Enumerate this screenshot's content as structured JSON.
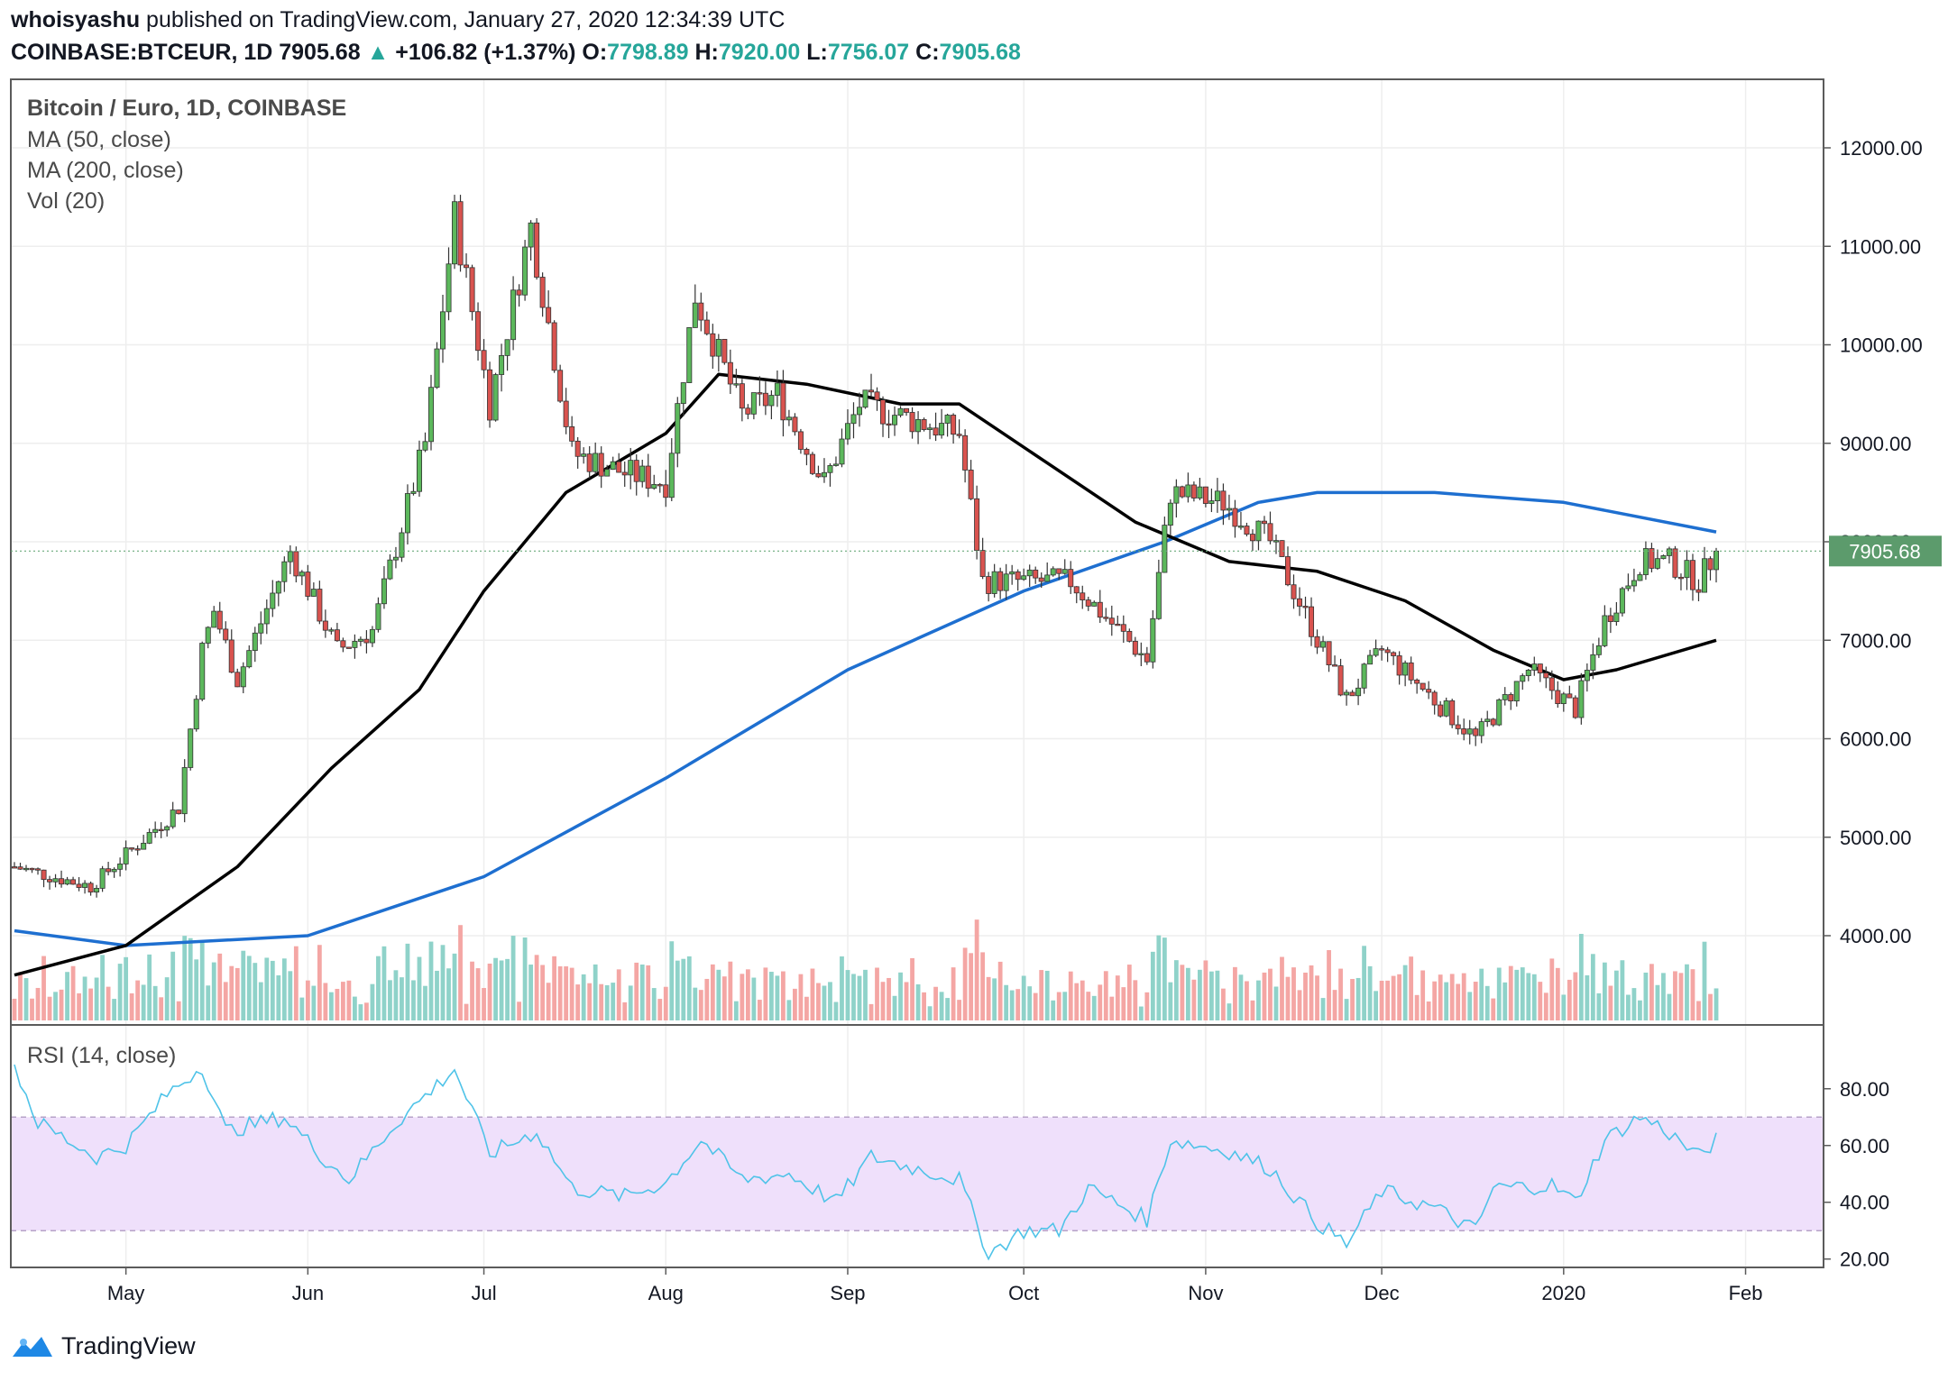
{
  "header": {
    "author": "whoisyashu",
    "published_text": "published on TradingView.com, January 27, 2020 12:34:39 UTC",
    "symbol": "COINBASE:BTCEUR, 1D",
    "last": "7905.68",
    "change": "+106.82 (+1.37%)",
    "o_label": "O:",
    "o": "7798.89",
    "h_label": "H:",
    "h": "7920.00",
    "l_label": "L:",
    "l": "7756.07",
    "c_label": "C:",
    "c": "7905.68"
  },
  "legend": {
    "title": "Bitcoin / Euro, 1D, COINBASE",
    "ma50": "MA (50, close)",
    "ma200": "MA (200, close)",
    "vol": "Vol (20)",
    "rsi": "RSI (14, close)"
  },
  "colors": {
    "up": "#26a69a",
    "down": "#ef5350",
    "candle_up_fill": "#5cb85c",
    "candle_down_fill": "#d9534f",
    "ma50": "#000000",
    "ma200": "#1e6fd0",
    "rsi_line": "#4fc3e8",
    "rsi_band": "#efe0fb",
    "price_tag": "#5c9b6c"
  },
  "footer": {
    "brand": "TradingView"
  },
  "chart_data": [
    {
      "type": "candlestick",
      "title": "Bitcoin / Euro, 1D, COINBASE",
      "y_ticks": [
        "12000.00",
        "11000.00",
        "10000.00",
        "9000.00",
        "8000.00",
        "7000.00",
        "6000.00",
        "5000.00",
        "4000.00"
      ],
      "ylim": [
        3250,
        12900
      ],
      "x_ticks": [
        "May",
        "Jun",
        "Jul",
        "Aug",
        "Sep",
        "Oct",
        "Nov",
        "Dec",
        "2020",
        "Feb"
      ],
      "current_price_label": "7905.68",
      "current_price": 7905.68,
      "ohlc_keypoints": [
        {
          "date": "2019-04-12",
          "close": 4700
        },
        {
          "date": "2019-04-25",
          "close": 4500
        },
        {
          "date": "2019-05-10",
          "close": 5300
        },
        {
          "date": "2019-05-14",
          "close": 6900
        },
        {
          "date": "2019-05-16",
          "close": 7300
        },
        {
          "date": "2019-05-20",
          "close": 6600
        },
        {
          "date": "2019-05-29",
          "close": 7900
        },
        {
          "date": "2019-06-06",
          "close": 6900
        },
        {
          "date": "2019-06-12",
          "close": 7100
        },
        {
          "date": "2019-06-21",
          "close": 9000
        },
        {
          "date": "2019-06-26",
          "close": 11300
        },
        {
          "date": "2019-07-02",
          "close": 9400
        },
        {
          "date": "2019-07-09",
          "close": 11200
        },
        {
          "date": "2019-07-16",
          "close": 8900
        },
        {
          "date": "2019-07-25",
          "close": 8700
        },
        {
          "date": "2019-08-01",
          "close": 8600
        },
        {
          "date": "2019-08-06",
          "close": 10500
        },
        {
          "date": "2019-08-14",
          "close": 9300
        },
        {
          "date": "2019-08-20",
          "close": 9500
        },
        {
          "date": "2019-08-28",
          "close": 8600
        },
        {
          "date": "2019-09-03",
          "close": 9400
        },
        {
          "date": "2019-09-20",
          "close": 9100
        },
        {
          "date": "2019-09-24",
          "close": 7600
        },
        {
          "date": "2019-10-09",
          "close": 7600
        },
        {
          "date": "2019-10-22",
          "close": 6800
        },
        {
          "date": "2019-10-26",
          "close": 8500
        },
        {
          "date": "2019-11-04",
          "close": 8400
        },
        {
          "date": "2019-11-12",
          "close": 8000
        },
        {
          "date": "2019-11-25",
          "close": 6400
        },
        {
          "date": "2019-12-01",
          "close": 6900
        },
        {
          "date": "2019-12-17",
          "close": 6000
        },
        {
          "date": "2019-12-26",
          "close": 6700
        },
        {
          "date": "2020-01-03",
          "close": 6300
        },
        {
          "date": "2020-01-08",
          "close": 7200
        },
        {
          "date": "2020-01-14",
          "close": 7800
        },
        {
          "date": "2020-01-19",
          "close": 7800
        },
        {
          "date": "2020-01-24",
          "close": 7600
        },
        {
          "date": "2020-01-27",
          "close": 7905.68
        }
      ],
      "series": [
        {
          "name": "MA (50, close)",
          "points": [
            {
              "date": "2019-04-12",
              "value": 3600
            },
            {
              "date": "2019-05-01",
              "value": 3900
            },
            {
              "date": "2019-05-20",
              "value": 4700
            },
            {
              "date": "2019-06-05",
              "value": 5700
            },
            {
              "date": "2019-06-20",
              "value": 6500
            },
            {
              "date": "2019-07-01",
              "value": 7500
            },
            {
              "date": "2019-07-15",
              "value": 8500
            },
            {
              "date": "2019-08-01",
              "value": 9100
            },
            {
              "date": "2019-08-10",
              "value": 9700
            },
            {
              "date": "2019-08-25",
              "value": 9600
            },
            {
              "date": "2019-09-10",
              "value": 9400
            },
            {
              "date": "2019-09-20",
              "value": 9400
            },
            {
              "date": "2019-10-05",
              "value": 8800
            },
            {
              "date": "2019-10-20",
              "value": 8200
            },
            {
              "date": "2019-11-05",
              "value": 7800
            },
            {
              "date": "2019-11-20",
              "value": 7700
            },
            {
              "date": "2019-12-05",
              "value": 7400
            },
            {
              "date": "2019-12-20",
              "value": 6900
            },
            {
              "date": "2020-01-01",
              "value": 6600
            },
            {
              "date": "2020-01-10",
              "value": 6700
            },
            {
              "date": "2020-01-27",
              "value": 7000
            }
          ]
        },
        {
          "name": "MA (200, close)",
          "points": [
            {
              "date": "2019-04-12",
              "value": 4050
            },
            {
              "date": "2019-05-01",
              "value": 3900
            },
            {
              "date": "2019-06-01",
              "value": 4000
            },
            {
              "date": "2019-07-01",
              "value": 4600
            },
            {
              "date": "2019-08-01",
              "value": 5600
            },
            {
              "date": "2019-09-01",
              "value": 6700
            },
            {
              "date": "2019-10-01",
              "value": 7500
            },
            {
              "date": "2019-10-25",
              "value": 8000
            },
            {
              "date": "2019-11-10",
              "value": 8400
            },
            {
              "date": "2019-11-20",
              "value": 8500
            },
            {
              "date": "2019-12-10",
              "value": 8500
            },
            {
              "date": "2020-01-01",
              "value": 8400
            },
            {
              "date": "2020-01-27",
              "value": 8100
            }
          ]
        }
      ]
    },
    {
      "type": "line",
      "title": "RSI (14, close)",
      "y_ticks": [
        "80.00",
        "60.00",
        "40.00",
        "20.00"
      ],
      "ylim": [
        18,
        92
      ],
      "band": [
        30,
        70
      ],
      "points": [
        {
          "date": "2019-04-12",
          "value": 88
        },
        {
          "date": "2019-04-16",
          "value": 68
        },
        {
          "date": "2019-04-26",
          "value": 56
        },
        {
          "date": "2019-05-01",
          "value": 60
        },
        {
          "date": "2019-05-08",
          "value": 78
        },
        {
          "date": "2019-05-14",
          "value": 88
        },
        {
          "date": "2019-05-18",
          "value": 65
        },
        {
          "date": "2019-05-28",
          "value": 70
        },
        {
          "date": "2019-06-04",
          "value": 55
        },
        {
          "date": "2019-06-08",
          "value": 48
        },
        {
          "date": "2019-06-16",
          "value": 68
        },
        {
          "date": "2019-06-26",
          "value": 87
        },
        {
          "date": "2019-07-02",
          "value": 57
        },
        {
          "date": "2019-07-10",
          "value": 65
        },
        {
          "date": "2019-07-16",
          "value": 45
        },
        {
          "date": "2019-07-25",
          "value": 42
        },
        {
          "date": "2019-08-01",
          "value": 47
        },
        {
          "date": "2019-08-07",
          "value": 62
        },
        {
          "date": "2019-08-14",
          "value": 48
        },
        {
          "date": "2019-08-22",
          "value": 50
        },
        {
          "date": "2019-08-30",
          "value": 40
        },
        {
          "date": "2019-09-05",
          "value": 56
        },
        {
          "date": "2019-09-20",
          "value": 48
        },
        {
          "date": "2019-09-25",
          "value": 22
        },
        {
          "date": "2019-10-01",
          "value": 30
        },
        {
          "date": "2019-10-07",
          "value": 30
        },
        {
          "date": "2019-10-12",
          "value": 45
        },
        {
          "date": "2019-10-22",
          "value": 34
        },
        {
          "date": "2019-10-26",
          "value": 62
        },
        {
          "date": "2019-11-05",
          "value": 58
        },
        {
          "date": "2019-11-12",
          "value": 52
        },
        {
          "date": "2019-11-20",
          "value": 33
        },
        {
          "date": "2019-11-25",
          "value": 25
        },
        {
          "date": "2019-12-01",
          "value": 44
        },
        {
          "date": "2019-12-10",
          "value": 38
        },
        {
          "date": "2019-12-17",
          "value": 30
        },
        {
          "date": "2019-12-20",
          "value": 45
        },
        {
          "date": "2019-12-30",
          "value": 46
        },
        {
          "date": "2020-01-03",
          "value": 40
        },
        {
          "date": "2020-01-08",
          "value": 62
        },
        {
          "date": "2020-01-14",
          "value": 70
        },
        {
          "date": "2020-01-18",
          "value": 66
        },
        {
          "date": "2020-01-24",
          "value": 56
        },
        {
          "date": "2020-01-27",
          "value": 62
        }
      ]
    }
  ]
}
